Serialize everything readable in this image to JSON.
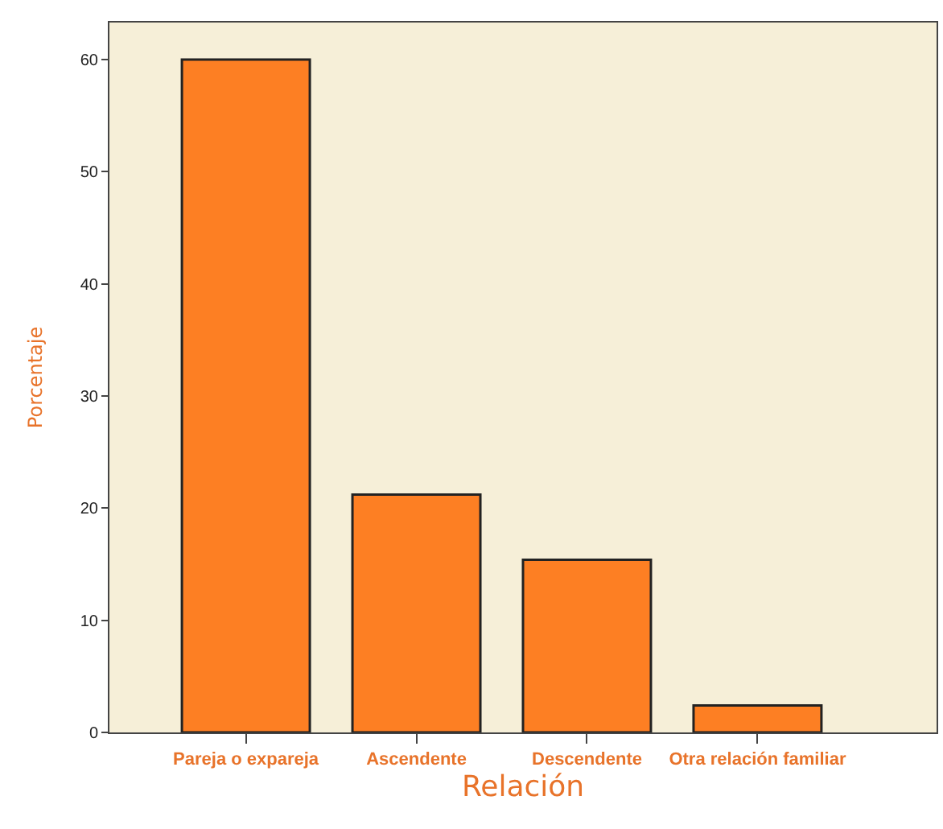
{
  "chart_data": {
    "type": "bar",
    "xlabel": "Relación",
    "ylabel": "Porcentaje",
    "categories": [
      "Pareja o expareja",
      "Ascendente",
      "Descendente",
      "Otra relación familiar"
    ],
    "values": [
      60,
      21.2,
      15.4,
      2.4
    ],
    "color": "#fd7f23",
    "ylim": [
      0,
      63.3
    ],
    "yticks": [
      0,
      10,
      20,
      30,
      40,
      50,
      60
    ],
    "grid": false,
    "legend": false
  }
}
